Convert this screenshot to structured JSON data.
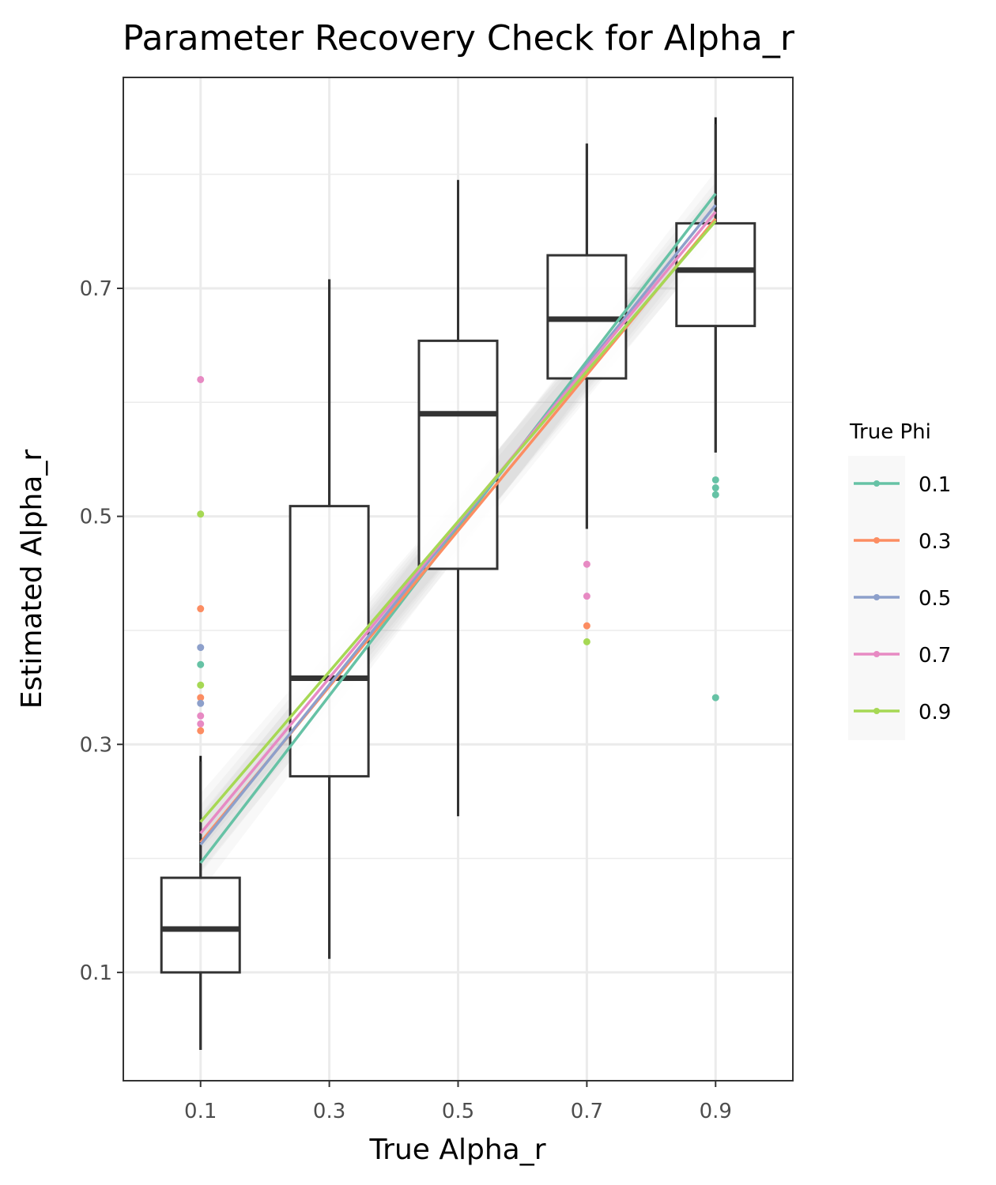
{
  "chart_data": {
    "type": "box",
    "title": "Parameter Recovery Check for Alpha_r",
    "xlabel": "True Alpha_r",
    "ylabel": "Estimated Alpha_r",
    "x_categories": [
      "0.1",
      "0.3",
      "0.5",
      "0.7",
      "0.9"
    ],
    "x_values": [
      0.1,
      0.3,
      0.5,
      0.7,
      0.9
    ],
    "y_ticks": [
      0.1,
      0.3,
      0.5,
      0.7
    ],
    "y_tick_labels": [
      "0.1",
      "0.3",
      "0.5",
      "0.7"
    ],
    "ylim": [
      0.005,
      0.885
    ],
    "xlim": [
      -0.02,
      1.02
    ],
    "grid": true,
    "legend": {
      "title": "True Phi",
      "position": "right",
      "entries": [
        {
          "label": "0.1",
          "color": "#66c2a5"
        },
        {
          "label": "0.3",
          "color": "#fc8d62"
        },
        {
          "label": "0.5",
          "color": "#8da0cb"
        },
        {
          "label": "0.7",
          "color": "#e78ac3"
        },
        {
          "label": "0.9",
          "color": "#a6d854"
        }
      ]
    },
    "boxes": [
      {
        "x": 0.1,
        "q1": 0.1,
        "median": 0.138,
        "q3": 0.183,
        "whisker_low": 0.032,
        "whisker_high": 0.285
      },
      {
        "x": 0.3,
        "q1": 0.272,
        "median": 0.358,
        "q3": 0.509,
        "whisker_low": 0.112,
        "whisker_high": 0.708
      },
      {
        "x": 0.5,
        "q1": 0.454,
        "median": 0.59,
        "q3": 0.654,
        "whisker_low": 0.237,
        "whisker_high": 0.795
      },
      {
        "x": 0.7,
        "q1": 0.621,
        "median": 0.673,
        "q3": 0.729,
        "whisker_low": 0.489,
        "whisker_high": 0.827
      },
      {
        "x": 0.9,
        "q1": 0.667,
        "median": 0.716,
        "q3": 0.757,
        "whisker_low": 0.556,
        "whisker_high": 0.844
      }
    ],
    "regression_lines": [
      {
        "name": "0.1",
        "color": "#66c2a5",
        "x": [
          0.1,
          0.9
        ],
        "y": [
          0.196,
          0.783
        ]
      },
      {
        "name": "0.3",
        "color": "#fc8d62",
        "x": [
          0.1,
          0.9
        ],
        "y": [
          0.214,
          0.761
        ]
      },
      {
        "name": "0.5",
        "color": "#8da0cb",
        "x": [
          0.1,
          0.9
        ],
        "y": [
          0.212,
          0.773
        ]
      },
      {
        "name": "0.7",
        "color": "#e78ac3",
        "x": [
          0.1,
          0.9
        ],
        "y": [
          0.222,
          0.767
        ]
      },
      {
        "name": "0.9",
        "color": "#a6d854",
        "x": [
          0.1,
          0.9
        ],
        "y": [
          0.232,
          0.759
        ]
      }
    ],
    "outliers": [
      {
        "x": 0.1,
        "y": 0.62,
        "color": "#e78ac3"
      },
      {
        "x": 0.1,
        "y": 0.502,
        "color": "#a6d854"
      },
      {
        "x": 0.1,
        "y": 0.419,
        "color": "#fc8d62"
      },
      {
        "x": 0.1,
        "y": 0.385,
        "color": "#8da0cb"
      },
      {
        "x": 0.1,
        "y": 0.37,
        "color": "#66c2a5"
      },
      {
        "x": 0.1,
        "y": 0.352,
        "color": "#a6d854"
      },
      {
        "x": 0.1,
        "y": 0.341,
        "color": "#fc8d62"
      },
      {
        "x": 0.1,
        "y": 0.336,
        "color": "#8da0cb"
      },
      {
        "x": 0.1,
        "y": 0.325,
        "color": "#e78ac3"
      },
      {
        "x": 0.1,
        "y": 0.318,
        "color": "#e78ac3"
      },
      {
        "x": 0.1,
        "y": 0.312,
        "color": "#fc8d62"
      },
      {
        "x": 0.7,
        "y": 0.458,
        "color": "#e78ac3"
      },
      {
        "x": 0.7,
        "y": 0.43,
        "color": "#e78ac3"
      },
      {
        "x": 0.7,
        "y": 0.404,
        "color": "#fc8d62"
      },
      {
        "x": 0.7,
        "y": 0.39,
        "color": "#a6d854"
      },
      {
        "x": 0.9,
        "y": 0.532,
        "color": "#66c2a5"
      },
      {
        "x": 0.9,
        "y": 0.525,
        "color": "#66c2a5"
      },
      {
        "x": 0.9,
        "y": 0.519,
        "color": "#66c2a5"
      },
      {
        "x": 0.9,
        "y": 0.341,
        "color": "#66c2a5"
      }
    ],
    "point_ranges": [
      {
        "x": 0.1,
        "low": 0.032,
        "high": 0.29
      },
      {
        "x": 0.3,
        "low": 0.112,
        "high": 0.708
      },
      {
        "x": 0.5,
        "low": 0.237,
        "high": 0.795
      },
      {
        "x": 0.7,
        "low": 0.489,
        "high": 0.827
      },
      {
        "x": 0.9,
        "low": 0.556,
        "high": 0.85
      }
    ]
  }
}
